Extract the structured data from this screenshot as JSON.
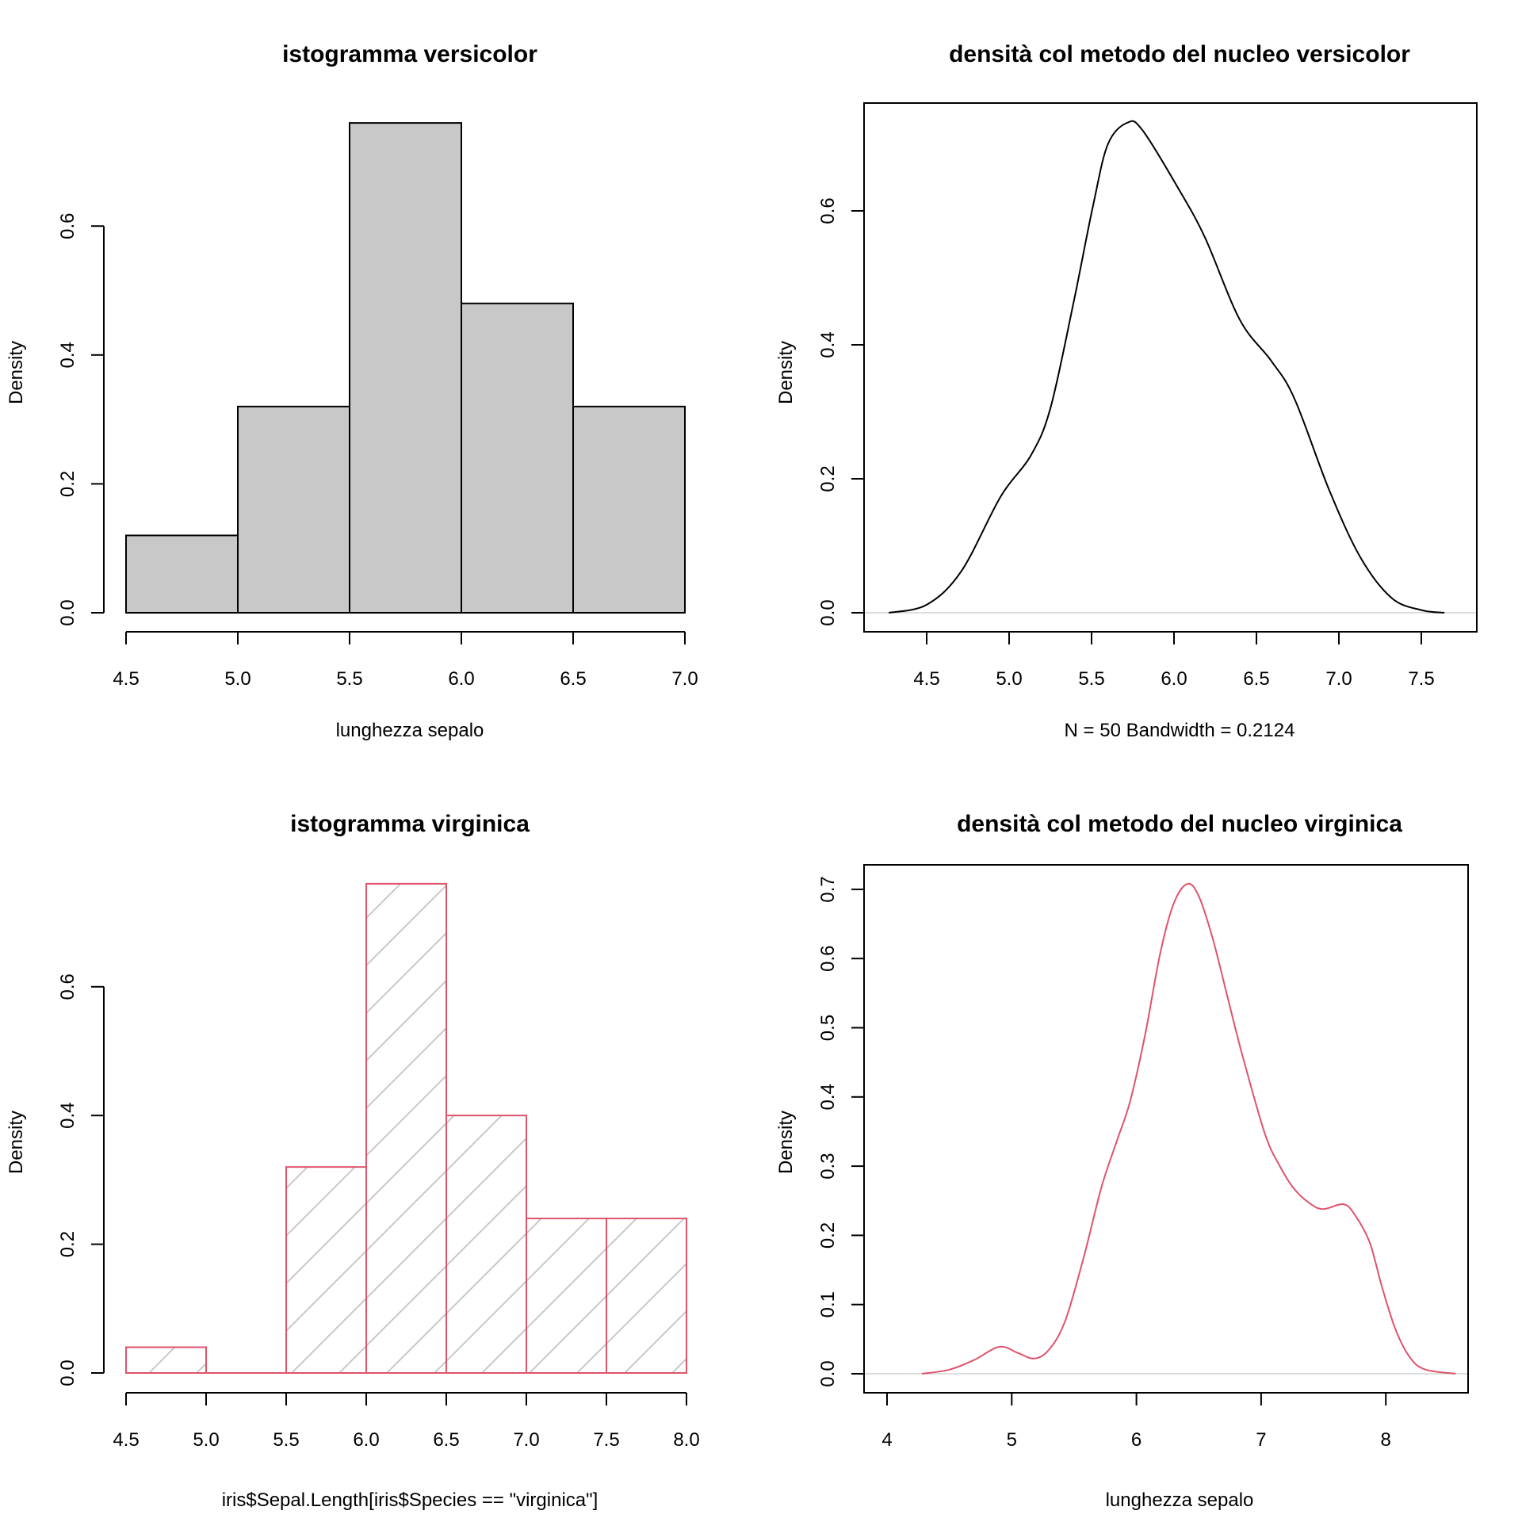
{
  "colors": {
    "hist_fill": "#C8C8C8",
    "hist_border": "#000000",
    "virginica": "#DF536B",
    "hatch": "#C8C8C8",
    "zero_line": "#D3D3D3",
    "density_versicolor": "#000000"
  },
  "chart_data": [
    {
      "type": "bar",
      "id": "hist-versicolor",
      "title": "istogramma versicolor",
      "xlabel": "lunghezza sepalo",
      "ylabel": "Density",
      "breaks": [
        4.5,
        5.0,
        5.5,
        6.0,
        6.5,
        7.0
      ],
      "values": [
        0.12,
        0.32,
        0.76,
        0.48,
        0.32
      ],
      "xticks": [
        "4.5",
        "5.0",
        "5.5",
        "6.0",
        "6.5",
        "7.0"
      ],
      "yticks": [
        "0.0",
        "0.2",
        "0.4",
        "0.6"
      ],
      "xlim": [
        4.5,
        7.0
      ],
      "ylim": [
        0,
        0.76
      ],
      "fill": "gray",
      "border": "black"
    },
    {
      "type": "line",
      "id": "density-versicolor",
      "title": "densità col metodo del nucleo versicolor",
      "xlabel": "N = 50   Bandwidth = 0.2124",
      "ylabel": "Density",
      "x": [
        4.27,
        4.5,
        4.71,
        4.95,
        5.13,
        5.25,
        5.39,
        5.51,
        5.6,
        5.72,
        5.81,
        6.03,
        6.19,
        6.4,
        6.59,
        6.73,
        6.94,
        7.13,
        7.32,
        7.5,
        7.64
      ],
      "y": [
        0.0,
        0.012,
        0.062,
        0.174,
        0.234,
        0.305,
        0.462,
        0.609,
        0.7,
        0.732,
        0.72,
        0.632,
        0.559,
        0.437,
        0.376,
        0.32,
        0.184,
        0.083,
        0.022,
        0.004,
        0.0
      ],
      "xticks": [
        "4.5",
        "5.0",
        "5.5",
        "6.0",
        "6.5",
        "7.0",
        "7.5"
      ],
      "yticks": [
        "0.0",
        "0.2",
        "0.4",
        "0.6"
      ],
      "xlim": [
        4.27,
        7.64
      ],
      "ylim": [
        0,
        0.732
      ],
      "color": "black"
    },
    {
      "type": "bar",
      "id": "hist-virginica",
      "title": "istogramma virginica",
      "xlabel": "iris$Sepal.Length[iris$Species == \"virginica\"]",
      "ylabel": "Density",
      "breaks": [
        4.5,
        5.0,
        5.5,
        6.0,
        6.5,
        7.0,
        7.5,
        8.0
      ],
      "values": [
        0.04,
        0.0,
        0.32,
        0.76,
        0.4,
        0.24,
        0.24
      ],
      "xticks": [
        "4.5",
        "5.0",
        "5.5",
        "6.0",
        "6.5",
        "7.0",
        "7.5",
        "8.0"
      ],
      "yticks": [
        "0.0",
        "0.2",
        "0.4",
        "0.6"
      ],
      "xlim": [
        4.5,
        8.0
      ],
      "ylim": [
        0,
        0.76
      ],
      "fill": "hatched (45°)",
      "border": "red"
    },
    {
      "type": "line",
      "id": "density-virginica",
      "title": "densità col metodo del nucleo virginica",
      "xlabel": "lunghezza sepalo",
      "ylabel": "Density",
      "x": [
        4.28,
        4.5,
        4.7,
        4.9,
        5.05,
        5.18,
        5.3,
        5.43,
        5.58,
        5.72,
        5.85,
        5.95,
        6.07,
        6.19,
        6.3,
        6.41,
        6.5,
        6.61,
        6.73,
        6.85,
        7.03,
        7.15,
        7.27,
        7.4,
        7.5,
        7.66,
        7.75,
        7.87,
        7.97,
        8.08,
        8.2,
        8.32,
        8.56
      ],
      "y": [
        0.0,
        0.006,
        0.02,
        0.039,
        0.03,
        0.022,
        0.035,
        0.077,
        0.17,
        0.27,
        0.34,
        0.394,
        0.49,
        0.607,
        0.68,
        0.708,
        0.69,
        0.63,
        0.545,
        0.46,
        0.347,
        0.3,
        0.266,
        0.245,
        0.238,
        0.245,
        0.23,
        0.19,
        0.125,
        0.063,
        0.022,
        0.006,
        0.0
      ],
      "xticks": [
        "4",
        "5",
        "6",
        "7",
        "8"
      ],
      "yticks": [
        "0.0",
        "0.1",
        "0.2",
        "0.3",
        "0.4",
        "0.5",
        "0.6",
        "0.7"
      ],
      "xlim": [
        4.28,
        8.56
      ],
      "ylim": [
        0,
        0.708
      ],
      "color": "red"
    }
  ]
}
